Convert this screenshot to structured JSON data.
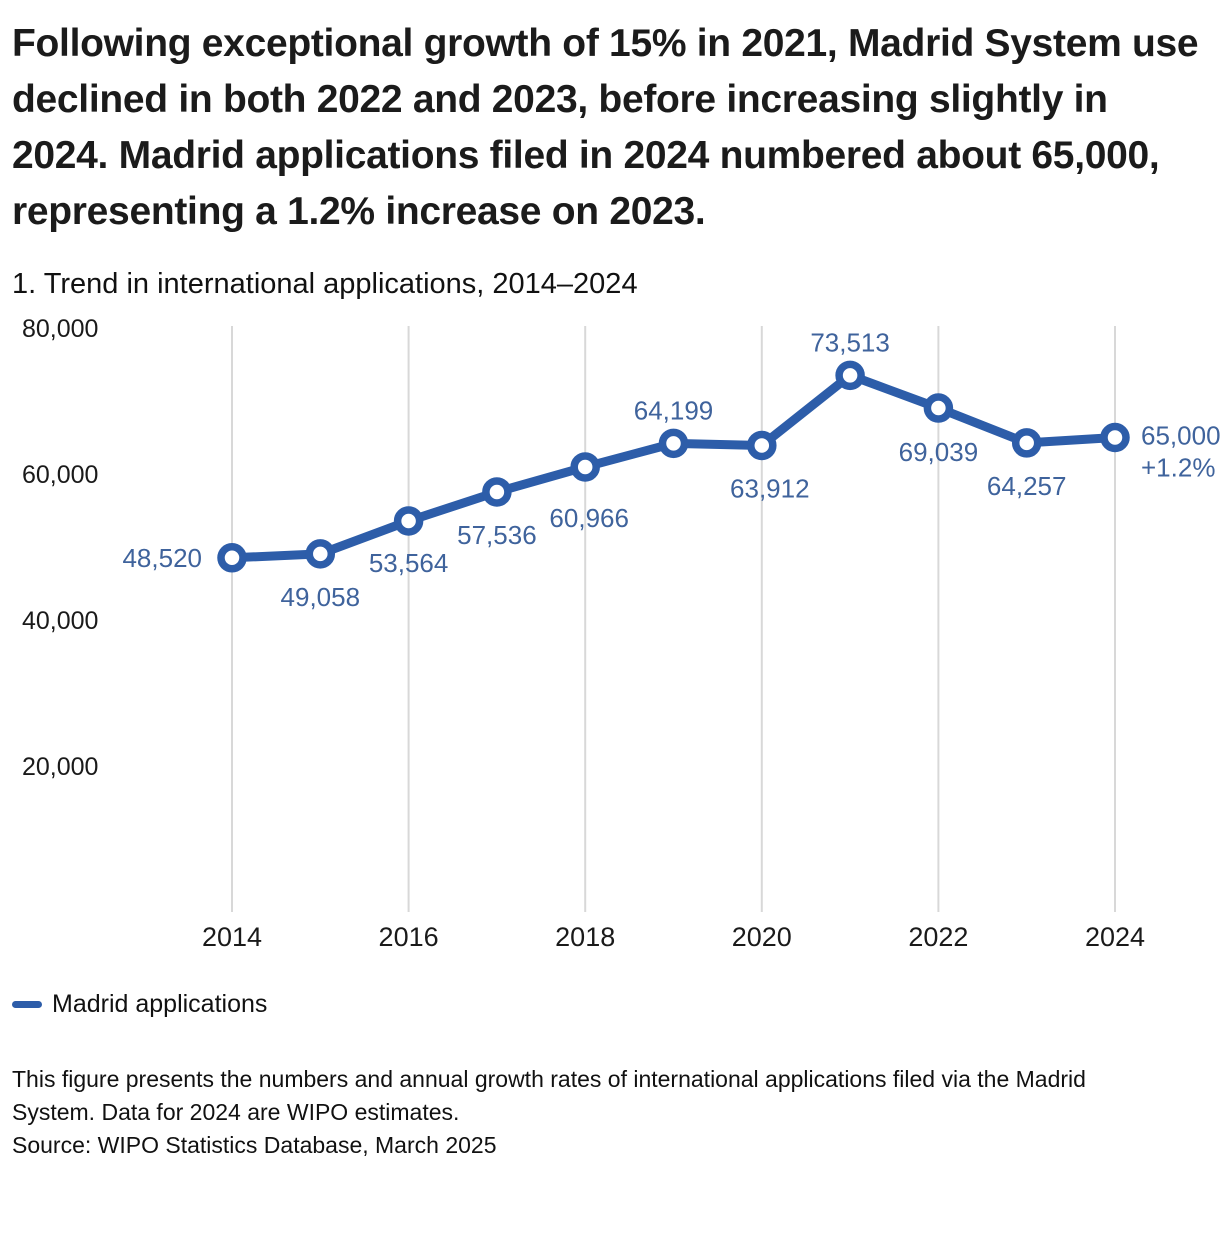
{
  "headline": "Following exceptional growth of 15% in 2021, Madrid System use declined in both 2022 and 2023, before increasing slightly in 2024. Madrid applications filed in 2024 numbered about 65,000, representing a 1.2% increase on 2023.",
  "figure_title": "1. Trend in international applications, 2014–2024",
  "legend": {
    "label": "Madrid applications"
  },
  "footnote": "This figure presents the numbers and annual growth rates of international applications filed via the Madrid System. Data for 2024 are WIPO estimates.",
  "source": "Source: WIPO Statistics Database, March 2025",
  "colors": {
    "line": "#2d5da9",
    "marker_fill": "#ffffff",
    "point_label": "#3f639c",
    "gridline": "#d8d8d8",
    "text": "#1a1a1a"
  },
  "chart_data": {
    "type": "line",
    "title": "1. Trend in international applications, 2014–2024",
    "x": [
      2014,
      2015,
      2016,
      2017,
      2018,
      2019,
      2020,
      2021,
      2022,
      2023,
      2024
    ],
    "series": [
      {
        "name": "Madrid applications",
        "values": [
          48520,
          49058,
          53564,
          57536,
          60966,
          64199,
          63912,
          73513,
          69039,
          64257,
          65000
        ]
      }
    ],
    "point_labels": [
      "48,520",
      "49,058",
      "53,564",
      "57,536",
      "60,966",
      "64,199",
      "63,912",
      "73,513",
      "69,039",
      "64,257",
      "65,000"
    ],
    "last_point_extra_label": "+1.2%",
    "xlabel": "",
    "ylabel": "",
    "ylim": [
      0,
      80000
    ],
    "yticks": [
      20000,
      40000,
      60000,
      80000
    ],
    "ytick_labels": [
      "20,000",
      "40,000",
      "60,000",
      "80,000"
    ],
    "xticks": [
      2014,
      2016,
      2018,
      2020,
      2022,
      2024
    ],
    "grid": "vertical",
    "legend_position": "bottom-left"
  }
}
